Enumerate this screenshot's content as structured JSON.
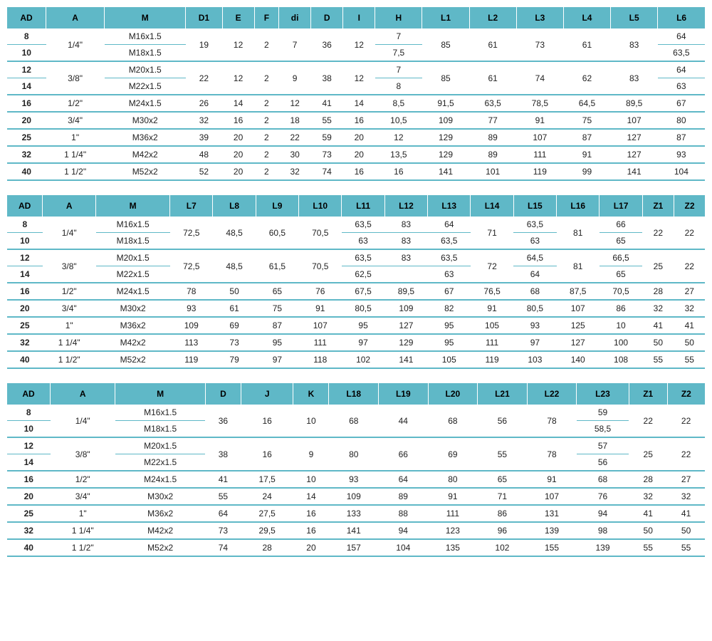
{
  "colors": {
    "header_bg": "#5fb8c7",
    "border": "#5fb8c7",
    "text": "#222222",
    "background": "#ffffff"
  },
  "typography": {
    "font_family": "Arial",
    "font_size_pt": 9,
    "header_weight": "bold"
  },
  "table1": {
    "type": "table",
    "columns": [
      "AD",
      "A",
      "M",
      "D1",
      "E",
      "F",
      "di",
      "D",
      "I",
      "H",
      "L1",
      "L2",
      "L3",
      "L4",
      "L5",
      "L6"
    ],
    "rows": [
      {
        "AD": "8",
        "A_span": "1/4\"",
        "M": "M16x1.5",
        "D1_span": "19",
        "E_span": "12",
        "F_span": "2",
        "di_span": "7",
        "D_span": "36",
        "I_span": "12",
        "H": "7",
        "L1_span": "85",
        "L2_span": "61",
        "L3_span": "73",
        "L4_span": "61",
        "L5_span": "83",
        "L6": "64",
        "type": "pair-top"
      },
      {
        "AD": "10",
        "M": "M18x1.5",
        "H": "7,5",
        "L6": "63,5",
        "type": "pair-bottom"
      },
      {
        "AD": "12",
        "A_span": "3/8\"",
        "M": "M20x1.5",
        "D1_span": "22",
        "E_span": "12",
        "F_span": "2",
        "di_span": "9",
        "D_span": "38",
        "I_span": "12",
        "H": "7",
        "L1_span": "85",
        "L2_span": "61",
        "L3_span": "74",
        "L4_span": "62",
        "L5_span": "83",
        "L6": "64",
        "type": "pair-top"
      },
      {
        "AD": "14",
        "M": "M22x1.5",
        "H": "8",
        "L6": "63",
        "type": "pair-bottom"
      },
      {
        "AD": "16",
        "A": "1/2\"",
        "M": "M24x1.5",
        "D1": "26",
        "E": "14",
        "F": "2",
        "di": "12",
        "D": "41",
        "I": "14",
        "H": "8,5",
        "L1": "91,5",
        "L2": "63,5",
        "L3": "78,5",
        "L4": "64,5",
        "L5": "89,5",
        "L6": "67",
        "type": "single"
      },
      {
        "AD": "20",
        "A": "3/4\"",
        "M": "M30x2",
        "D1": "32",
        "E": "16",
        "F": "2",
        "di": "18",
        "D": "55",
        "I": "16",
        "H": "10,5",
        "L1": "109",
        "L2": "77",
        "L3": "91",
        "L4": "75",
        "L5": "107",
        "L6": "80",
        "type": "single"
      },
      {
        "AD": "25",
        "A": "1\"",
        "M": "M36x2",
        "D1": "39",
        "E": "20",
        "F": "2",
        "di": "22",
        "D": "59",
        "I": "20",
        "H": "12",
        "L1": "129",
        "L2": "89",
        "L3": "107",
        "L4": "87",
        "L5": "127",
        "L6": "87",
        "type": "single"
      },
      {
        "AD": "32",
        "A": "1 1/4\"",
        "M": "M42x2",
        "D1": "48",
        "E": "20",
        "F": "2",
        "di": "30",
        "D": "73",
        "I": "20",
        "H": "13,5",
        "L1": "129",
        "L2": "89",
        "L3": "111",
        "L4": "91",
        "L5": "127",
        "L6": "93",
        "type": "single"
      },
      {
        "AD": "40",
        "A": "1 1/2\"",
        "M": "M52x2",
        "D1": "52",
        "E": "20",
        "F": "2",
        "di": "32",
        "D": "74",
        "I": "16",
        "H": "16",
        "L1": "141",
        "L2": "101",
        "L3": "119",
        "L4": "99",
        "L5": "141",
        "L6": "104",
        "type": "single"
      }
    ]
  },
  "table2": {
    "type": "table",
    "columns": [
      "AD",
      "A",
      "M",
      "L7",
      "L8",
      "L9",
      "L10",
      "L11",
      "L12",
      "L13",
      "L14",
      "L15",
      "L16",
      "L17",
      "Z1",
      "Z2"
    ],
    "rows": [
      {
        "AD": "8",
        "A_span": "1/4\"",
        "M": "M16x1.5",
        "L7_span": "72,5",
        "L8_span": "48,5",
        "L9_span": "60,5",
        "L10_span": "70,5",
        "L11": "63,5",
        "L12": "83",
        "L13": "64",
        "L14_span": "71",
        "L15": "63,5",
        "L16_span": "81",
        "L17": "66",
        "Z1_span": "22",
        "Z2_span": "22",
        "type": "pair-top"
      },
      {
        "AD": "10",
        "M": "M18x1.5",
        "L11": "63",
        "L12": "83",
        "L13": "63,5",
        "L15": "63",
        "L17": "65",
        "type": "pair-bottom"
      },
      {
        "AD": "12",
        "A_span": "3/8\"",
        "M": "M20x1.5",
        "L7_span": "72,5",
        "L8_span": "48,5",
        "L9_span": "61,5",
        "L10_span": "70,5",
        "L11": "63,5",
        "L12": "83",
        "L13": "63,5",
        "L14_span": "72",
        "L15": "64,5",
        "L16_span": "81",
        "L17": "66,5",
        "Z1_span": "25",
        "Z2_span": "22",
        "type": "pair-top"
      },
      {
        "AD": "14",
        "M": "M22x1.5",
        "L11": "62,5",
        "L12": "",
        "L13": "63",
        "L15": "64",
        "L17": "65",
        "type": "pair-bottom"
      },
      {
        "AD": "16",
        "A": "1/2\"",
        "M": "M24x1.5",
        "L7": "78",
        "L8": "50",
        "L9": "65",
        "L10": "76",
        "L11": "67,5",
        "L12": "89,5",
        "L13": "67",
        "L14": "76,5",
        "L15": "68",
        "L16": "87,5",
        "L17": "70,5",
        "Z1": "28",
        "Z2": "27",
        "type": "single"
      },
      {
        "AD": "20",
        "A": "3/4\"",
        "M": "M30x2",
        "L7": "93",
        "L8": "61",
        "L9": "75",
        "L10": "91",
        "L11": "80,5",
        "L12": "109",
        "L13": "82",
        "L14": "91",
        "L15": "80,5",
        "L16": "107",
        "L17": "86",
        "Z1": "32",
        "Z2": "32",
        "type": "single"
      },
      {
        "AD": "25",
        "A": "1\"",
        "M": "M36x2",
        "L7": "109",
        "L8": "69",
        "L9": "87",
        "L10": "107",
        "L11": "95",
        "L12": "127",
        "L13": "95",
        "L14": "105",
        "L15": "93",
        "L16": "125",
        "L17": "10",
        "Z1": "41",
        "Z2": "41",
        "type": "single"
      },
      {
        "AD": "32",
        "A": "1 1/4\"",
        "M": "M42x2",
        "L7": "113",
        "L8": "73",
        "L9": "95",
        "L10": "111",
        "L11": "97",
        "L12": "129",
        "L13": "95",
        "L14": "111",
        "L15": "97",
        "L16": "127",
        "L17": "100",
        "Z1": "50",
        "Z2": "50",
        "type": "single"
      },
      {
        "AD": "40",
        "A": "1 1/2\"",
        "M": "M52x2",
        "L7": "119",
        "L8": "79",
        "L9": "97",
        "L10": "118",
        "L11": "102",
        "L12": "141",
        "L13": "105",
        "L14": "119",
        "L15": "103",
        "L16": "140",
        "L17": "108",
        "Z1": "55",
        "Z2": "55",
        "type": "single"
      }
    ]
  },
  "table3": {
    "type": "table",
    "columns": [
      "AD",
      "A",
      "M",
      "D",
      "J",
      "K",
      "L18",
      "L19",
      "L20",
      "L21",
      "L22",
      "L23",
      "Z1",
      "Z2"
    ],
    "rows": [
      {
        "AD": "8",
        "A_span": "1/4\"",
        "M": "M16x1.5",
        "D_span": "36",
        "J_span": "16",
        "K_span": "10",
        "L18_span": "68",
        "L19_span": "44",
        "L20_span": "68",
        "L21_span": "56",
        "L22_span": "78",
        "L23": "59",
        "Z1_span": "22",
        "Z2_span": "22",
        "type": "pair-top"
      },
      {
        "AD": "10",
        "M": "M18x1.5",
        "L23": "58,5",
        "type": "pair-bottom"
      },
      {
        "AD": "12",
        "A_span": "3/8\"",
        "M": "M20x1.5",
        "D_span": "38",
        "J_span": "16",
        "K_span": "9",
        "L18_span": "80",
        "L19_span": "66",
        "L20_span": "69",
        "L21_span": "55",
        "L22_span": "78",
        "L23": "57",
        "Z1_span": "25",
        "Z2_span": "22",
        "type": "pair-top"
      },
      {
        "AD": "14",
        "M": "M22x1.5",
        "L23": "56",
        "type": "pair-bottom"
      },
      {
        "AD": "16",
        "A": "1/2\"",
        "M": "M24x1.5",
        "D": "41",
        "J": "17,5",
        "K": "10",
        "L18": "93",
        "L19": "64",
        "L20": "80",
        "L21": "65",
        "L22": "91",
        "L23": "68",
        "Z1": "28",
        "Z2": "27",
        "type": "single"
      },
      {
        "AD": "20",
        "A": "3/4\"",
        "M": "M30x2",
        "D": "55",
        "J": "24",
        "K": "14",
        "L18": "109",
        "L19": "89",
        "L20": "91",
        "L21": "71",
        "L22": "107",
        "L23": "76",
        "Z1": "32",
        "Z2": "32",
        "type": "single"
      },
      {
        "AD": "25",
        "A": "1\"",
        "M": "M36x2",
        "D": "64",
        "J": "27,5",
        "K": "16",
        "L18": "133",
        "L19": "88",
        "L20": "111",
        "L21": "86",
        "L22": "131",
        "L23": "94",
        "Z1": "41",
        "Z2": "41",
        "type": "single"
      },
      {
        "AD": "32",
        "A": "1 1/4\"",
        "M": "M42x2",
        "D": "73",
        "J": "29,5",
        "K": "16",
        "L18": "141",
        "L19": "94",
        "L20": "123",
        "L21": "96",
        "L22": "139",
        "L23": "98",
        "Z1": "50",
        "Z2": "50",
        "type": "single"
      },
      {
        "AD": "40",
        "A": "1 1/2\"",
        "M": "M52x2",
        "D": "74",
        "J": "28",
        "K": "20",
        "L18": "157",
        "L19": "104",
        "L20": "135",
        "L21": "102",
        "L22": "155",
        "L23": "139",
        "Z1": "55",
        "Z2": "55",
        "type": "single"
      }
    ]
  }
}
